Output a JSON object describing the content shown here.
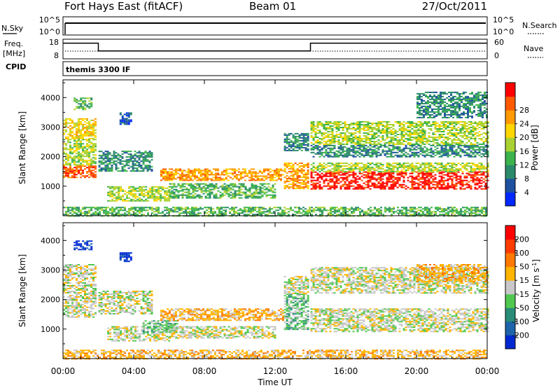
{
  "header": {
    "station": "Fort Hays East (fitACF)",
    "beam": "Beam 01",
    "date": "27/Oct/2011"
  },
  "nsky_panel": {
    "left_label": "N.Sky",
    "right_label": "N.Search",
    "left_ticks": [
      "10^5",
      "10^0"
    ],
    "right_ticks": [
      "10^5",
      "10^0"
    ]
  },
  "freq_panel": {
    "left_label_top": "Freq.",
    "left_label_unit": "[MHz]",
    "right_label": "Nave",
    "left_ticks": [
      "18",
      "8"
    ],
    "right_ticks": [
      "60",
      "0"
    ],
    "freq_steps": [
      {
        "t": 0.0,
        "v": 16
      },
      {
        "t": 2.0,
        "v": 16
      },
      {
        "t": 2.0,
        "v": 12
      },
      {
        "t": 14.0,
        "v": 12
      },
      {
        "t": 14.0,
        "v": 16
      },
      {
        "t": 24.0,
        "v": 16
      }
    ]
  },
  "cpid": {
    "label": "CPID",
    "mode": "themis 3300 IF"
  },
  "chart_data": [
    {
      "type": "heatmap",
      "title": "",
      "xlabel": "",
      "ylabel": "Slant Range [km]",
      "xlim": [
        0,
        24
      ],
      "ylim": [
        0,
        4600
      ],
      "yticks": [
        "1000",
        "2000",
        "3000",
        "4000"
      ],
      "colorbar": {
        "label": "Power [dB]",
        "ticks": [
          "4",
          "8",
          "12",
          "16",
          "20",
          "24",
          "28"
        ],
        "colors": [
          "#0028ff",
          "#1e50a0",
          "#2a8a6a",
          "#3cb44b",
          "#aad232",
          "#ffd700",
          "#ff9a00",
          "#ff5a00",
          "#ff0000"
        ]
      },
      "echo_regions": [
        {
          "t0": 0.0,
          "t1": 1.8,
          "r0": 1300,
          "r1": 1700,
          "level": 7
        },
        {
          "t0": 0.0,
          "t1": 1.8,
          "r0": 1700,
          "r1": 2600,
          "level": 4
        },
        {
          "t0": 0.0,
          "t1": 1.8,
          "r0": 2600,
          "r1": 3300,
          "level": 5
        },
        {
          "t0": 0.6,
          "t1": 1.6,
          "r0": 3600,
          "r1": 4000,
          "level": 3
        },
        {
          "t0": 2.0,
          "t1": 5.0,
          "r0": 1500,
          "r1": 2200,
          "level": 2
        },
        {
          "t0": 3.2,
          "t1": 3.8,
          "r0": 3100,
          "r1": 3500,
          "level": 1
        },
        {
          "t0": 2.5,
          "t1": 6.0,
          "r0": 500,
          "r1": 1000,
          "level": 4
        },
        {
          "t0": 5.5,
          "t1": 12.5,
          "r0": 1200,
          "r1": 1600,
          "level": 6
        },
        {
          "t0": 6.0,
          "t1": 12.0,
          "r0": 600,
          "r1": 1100,
          "level": 3
        },
        {
          "t0": 12.5,
          "t1": 13.9,
          "r0": 900,
          "r1": 1800,
          "level": 6
        },
        {
          "t0": 12.5,
          "t1": 13.9,
          "r0": 2200,
          "r1": 2800,
          "level": 2
        },
        {
          "t0": 14.0,
          "t1": 24.0,
          "r0": 900,
          "r1": 1500,
          "level": 8
        },
        {
          "t0": 14.0,
          "t1": 24.0,
          "r0": 1500,
          "r1": 1800,
          "level": 4
        },
        {
          "t0": 14.0,
          "t1": 24.0,
          "r0": 2000,
          "r1": 2400,
          "level": 2
        },
        {
          "t0": 14.0,
          "t1": 24.0,
          "r0": 2400,
          "r1": 3200,
          "level": 4
        },
        {
          "t0": 20.0,
          "t1": 24.0,
          "r0": 3300,
          "r1": 4200,
          "level": 2
        },
        {
          "t0": 0.0,
          "t1": 24.0,
          "r0": 0,
          "r1": 300,
          "level": 3
        }
      ]
    },
    {
      "type": "heatmap",
      "title": "",
      "xlabel": "Time UT",
      "ylabel": "Slant Range [km]",
      "xlim": [
        0,
        24
      ],
      "ylim": [
        0,
        4600
      ],
      "xticks": [
        "00:00",
        "04:00",
        "08:00",
        "12:00",
        "16:00",
        "20:00",
        "00:00"
      ],
      "yticks": [
        "1000",
        "2000",
        "3000",
        "4000"
      ],
      "colorbar": {
        "label": "Velocity [m s",
        "label_exponent": "-1",
        "label_close": "]",
        "ticks": [
          "200",
          "100",
          "50",
          "15",
          "-15",
          "-50",
          "-100",
          "-200"
        ],
        "colors": [
          "#0028d2",
          "#1e64aa",
          "#288c78",
          "#50c850",
          "#c8c8c8",
          "#ffb400",
          "#ff7800",
          "#ff3c00",
          "#ff0000"
        ]
      },
      "echo_regions": [
        {
          "t0": 0.0,
          "t1": 1.8,
          "r0": 1400,
          "r1": 2000,
          "level": 4
        },
        {
          "t0": 0.0,
          "t1": 1.8,
          "r0": 2000,
          "r1": 3200,
          "level": 4
        },
        {
          "t0": 0.6,
          "t1": 1.6,
          "r0": 3700,
          "r1": 4000,
          "level": 0
        },
        {
          "t0": 2.0,
          "t1": 5.0,
          "r0": 1500,
          "r1": 2300,
          "level": 4
        },
        {
          "t0": 3.2,
          "t1": 3.8,
          "r0": 3300,
          "r1": 3600,
          "level": 0
        },
        {
          "t0": 2.5,
          "t1": 6.0,
          "r0": 600,
          "r1": 1100,
          "level": 4
        },
        {
          "t0": 4.5,
          "t1": 6.5,
          "r0": 900,
          "r1": 1300,
          "level": 3
        },
        {
          "t0": 5.5,
          "t1": 12.5,
          "r0": 1300,
          "r1": 1700,
          "level": 5
        },
        {
          "t0": 6.0,
          "t1": 12.0,
          "r0": 700,
          "r1": 1100,
          "level": 4
        },
        {
          "t0": 12.5,
          "t1": 13.9,
          "r0": 1000,
          "r1": 2200,
          "level": 3
        },
        {
          "t0": 12.5,
          "t1": 13.9,
          "r0": 2200,
          "r1": 2800,
          "level": 4
        },
        {
          "t0": 14.0,
          "t1": 24.0,
          "r0": 900,
          "r1": 1700,
          "level": 4
        },
        {
          "t0": 14.0,
          "t1": 24.0,
          "r0": 2200,
          "r1": 3100,
          "level": 4
        },
        {
          "t0": 20.0,
          "t1": 24.0,
          "r0": 2600,
          "r1": 3200,
          "level": 5
        },
        {
          "t0": 0.0,
          "t1": 24.0,
          "r0": 0,
          "r1": 300,
          "level": 5
        }
      ]
    }
  ]
}
